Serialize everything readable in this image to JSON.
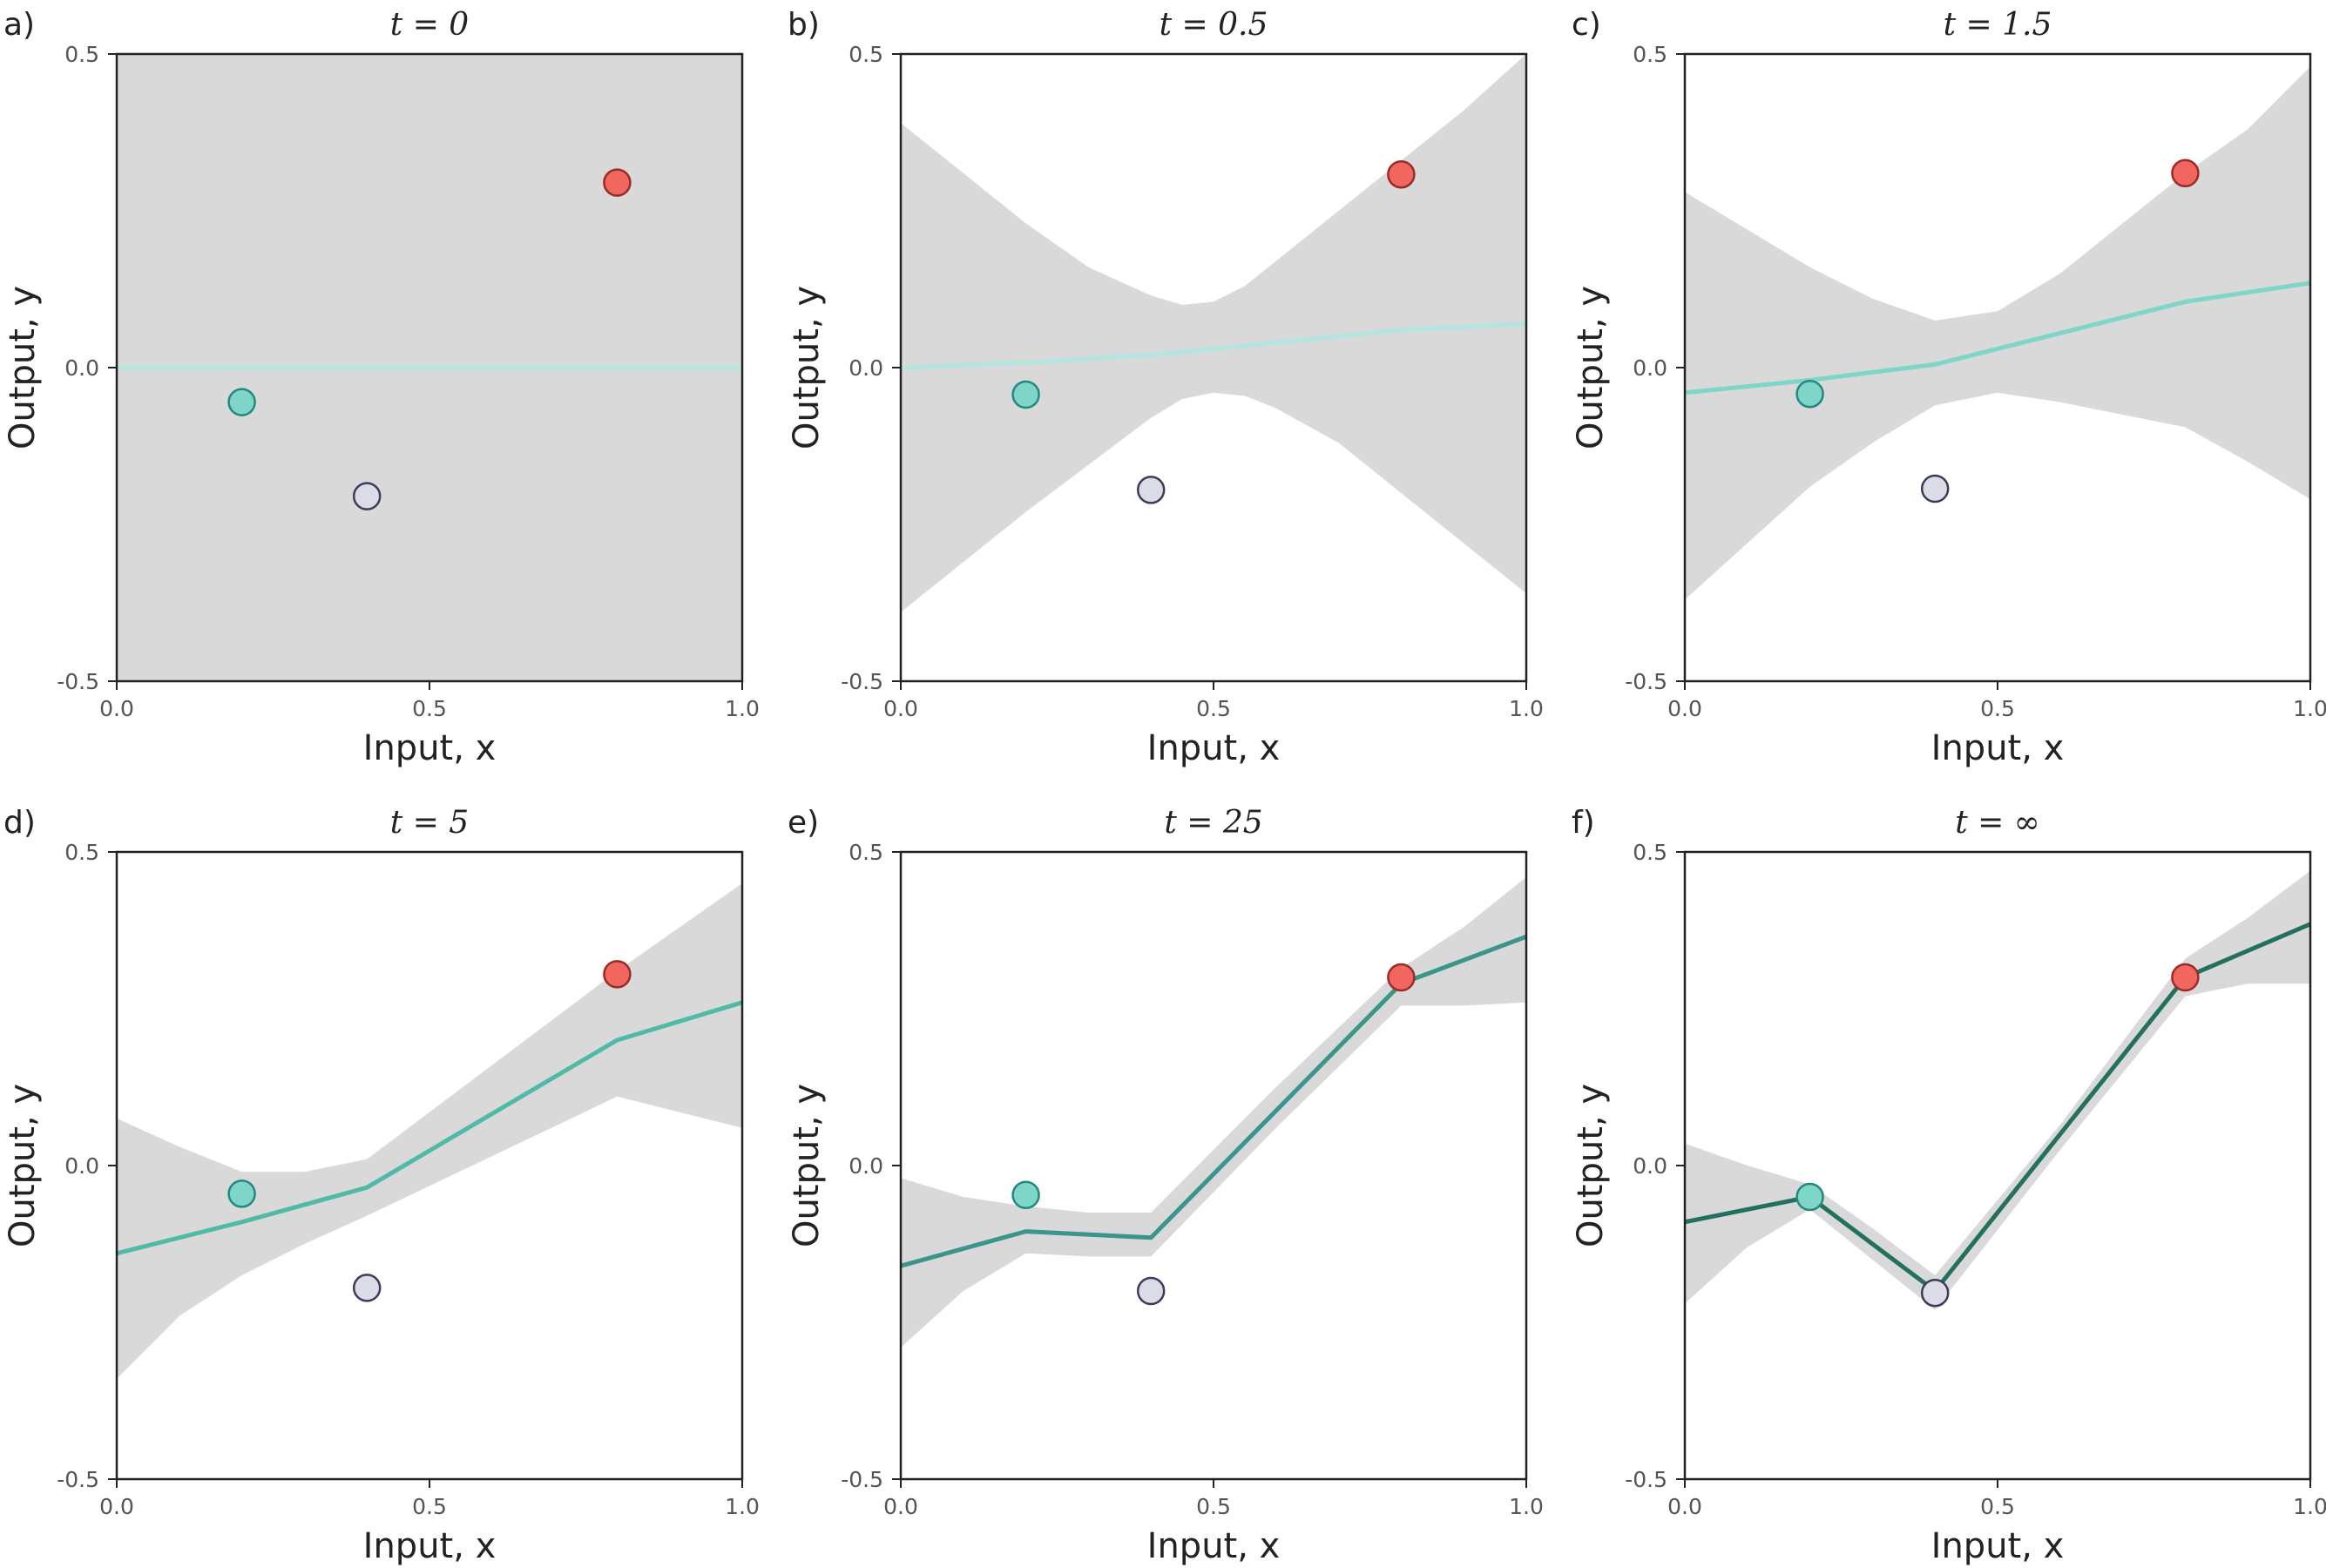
{
  "chart_data": [
    {
      "type": "line",
      "panel_label": "a)",
      "title": "t = 0",
      "xlabel": "Input, x",
      "ylabel": "Output, y",
      "xlim": [
        0.0,
        1.0
      ],
      "ylim": [
        -0.5,
        0.5
      ],
      "xticks": [
        "0.0",
        "0.5",
        "1.0"
      ],
      "yticks": [
        "-0.5",
        "0.0",
        "0.5"
      ],
      "line_color": "#b3e6df",
      "band": {
        "x": [
          0.0,
          1.0
        ],
        "lower": [
          -0.5,
          -0.5
        ],
        "upper": [
          0.5,
          0.5
        ]
      },
      "mean_line": {
        "x": [
          0.0,
          1.0
        ],
        "y": [
          0.0,
          0.0
        ]
      },
      "points": [
        {
          "x": 0.2,
          "y": -0.055,
          "color": "#7fd6c8"
        },
        {
          "x": 0.4,
          "y": -0.205,
          "color": "#dcdce6"
        },
        {
          "x": 0.8,
          "y": 0.295,
          "color": "#f26660"
        }
      ]
    },
    {
      "type": "line",
      "panel_label": "b)",
      "title": "t = 0.5",
      "xlabel": "Input, x",
      "ylabel": "Output, y",
      "xlim": [
        0.0,
        1.0
      ],
      "ylim": [
        -0.5,
        0.5
      ],
      "xticks": [
        "0.0",
        "0.5",
        "1.0"
      ],
      "yticks": [
        "-0.5",
        "0.0",
        "0.5"
      ],
      "line_color": "#b3e6df",
      "band": {
        "x": [
          0.0,
          0.1,
          0.2,
          0.3,
          0.4,
          0.45,
          0.5,
          0.55,
          0.6,
          0.7,
          0.8,
          0.9,
          1.0
        ],
        "upper": [
          0.39,
          0.31,
          0.23,
          0.16,
          0.115,
          0.1,
          0.105,
          0.13,
          0.17,
          0.25,
          0.33,
          0.41,
          0.5
        ],
        "lower": [
          -0.39,
          -0.31,
          -0.23,
          -0.155,
          -0.08,
          -0.05,
          -0.04,
          -0.045,
          -0.065,
          -0.12,
          -0.2,
          -0.28,
          -0.36
        ]
      },
      "mean_line": {
        "x": [
          0.0,
          0.2,
          0.4,
          0.6,
          0.8,
          1.0
        ],
        "y": [
          0.0,
          0.008,
          0.02,
          0.04,
          0.06,
          0.07
        ]
      },
      "points": [
        {
          "x": 0.2,
          "y": -0.043,
          "color": "#7fd6c8"
        },
        {
          "x": 0.4,
          "y": -0.195,
          "color": "#dcdce6"
        },
        {
          "x": 0.8,
          "y": 0.308,
          "color": "#f26660"
        }
      ]
    },
    {
      "type": "line",
      "panel_label": "c)",
      "title": "t = 1.5",
      "xlabel": "Input, x",
      "ylabel": "Output, y",
      "xlim": [
        0.0,
        1.0
      ],
      "ylim": [
        -0.5,
        0.5
      ],
      "xticks": [
        "0.0",
        "0.5",
        "1.0"
      ],
      "yticks": [
        "-0.5",
        "0.0",
        "0.5"
      ],
      "line_color": "#7fd6c8",
      "band": {
        "x": [
          0.0,
          0.1,
          0.2,
          0.3,
          0.4,
          0.5,
          0.6,
          0.7,
          0.8,
          0.9,
          1.0
        ],
        "upper": [
          0.28,
          0.22,
          0.16,
          0.11,
          0.075,
          0.09,
          0.15,
          0.23,
          0.31,
          0.38,
          0.48
        ],
        "lower": [
          -0.37,
          -0.28,
          -0.19,
          -0.12,
          -0.06,
          -0.04,
          -0.055,
          -0.075,
          -0.095,
          -0.15,
          -0.21
        ]
      },
      "mean_line": {
        "x": [
          0.0,
          0.2,
          0.4,
          0.6,
          0.8,
          1.0
        ],
        "y": [
          -0.04,
          -0.02,
          0.005,
          0.055,
          0.105,
          0.135
        ]
      },
      "points": [
        {
          "x": 0.2,
          "y": -0.042,
          "color": "#7fd6c8"
        },
        {
          "x": 0.4,
          "y": -0.193,
          "color": "#dcdce6"
        },
        {
          "x": 0.8,
          "y": 0.31,
          "color": "#f26660"
        }
      ]
    },
    {
      "type": "line",
      "panel_label": "d)",
      "title": "t = 5",
      "xlabel": "Input, x",
      "ylabel": "Output, y",
      "xlim": [
        0.0,
        1.0
      ],
      "ylim": [
        -0.5,
        0.5
      ],
      "xticks": [
        "0.0",
        "0.5",
        "1.0"
      ],
      "yticks": [
        "-0.5",
        "0.0",
        "0.5"
      ],
      "line_color": "#4fbaa8",
      "band": {
        "x": [
          0.0,
          0.1,
          0.2,
          0.3,
          0.4,
          0.6,
          0.8,
          1.0
        ],
        "upper": [
          0.075,
          0.03,
          -0.01,
          -0.01,
          0.01,
          0.16,
          0.31,
          0.45
        ],
        "lower": [
          -0.34,
          -0.24,
          -0.175,
          -0.125,
          -0.08,
          0.015,
          0.11,
          0.06
        ]
      },
      "mean_line": {
        "x": [
          0.0,
          0.2,
          0.4,
          0.8,
          1.0
        ],
        "y": [
          -0.14,
          -0.09,
          -0.035,
          0.2,
          0.26
        ]
      },
      "points": [
        {
          "x": 0.2,
          "y": -0.045,
          "color": "#7fd6c8"
        },
        {
          "x": 0.4,
          "y": -0.195,
          "color": "#dcdce6"
        },
        {
          "x": 0.8,
          "y": 0.305,
          "color": "#f26660"
        }
      ]
    },
    {
      "type": "line",
      "panel_label": "e)",
      "title": "t = 25",
      "xlabel": "Input, x",
      "ylabel": "Output, y",
      "xlim": [
        0.0,
        1.0
      ],
      "ylim": [
        -0.5,
        0.5
      ],
      "xticks": [
        "0.0",
        "0.5",
        "1.0"
      ],
      "yticks": [
        "-0.5",
        "0.0",
        "0.5"
      ],
      "line_color": "#3a968a",
      "band": {
        "x": [
          0.0,
          0.1,
          0.2,
          0.3,
          0.4,
          0.6,
          0.8,
          0.9,
          1.0
        ],
        "upper": [
          -0.02,
          -0.05,
          -0.065,
          -0.075,
          -0.075,
          0.125,
          0.315,
          0.38,
          0.46
        ],
        "lower": [
          -0.29,
          -0.2,
          -0.14,
          -0.145,
          -0.145,
          0.06,
          0.255,
          0.255,
          0.26
        ]
      },
      "mean_line": {
        "x": [
          0.0,
          0.2,
          0.4,
          0.8,
          1.0
        ],
        "y": [
          -0.16,
          -0.105,
          -0.115,
          0.29,
          0.365
        ]
      },
      "points": [
        {
          "x": 0.2,
          "y": -0.047,
          "color": "#7fd6c8"
        },
        {
          "x": 0.4,
          "y": -0.2,
          "color": "#dcdce6"
        },
        {
          "x": 0.8,
          "y": 0.3,
          "color": "#f26660"
        }
      ]
    },
    {
      "type": "line",
      "panel_label": "f)",
      "title": "t = ∞",
      "xlabel": "Input, x",
      "ylabel": "Output, y",
      "xlim": [
        0.0,
        1.0
      ],
      "ylim": [
        -0.5,
        0.5
      ],
      "xticks": [
        "0.0",
        "0.5",
        "1.0"
      ],
      "yticks": [
        "-0.5",
        "0.0",
        "0.5"
      ],
      "line_color": "#24705f",
      "band": {
        "x": [
          0.0,
          0.1,
          0.2,
          0.3,
          0.4,
          0.6,
          0.8,
          0.9,
          1.0
        ],
        "upper": [
          0.035,
          0.0,
          -0.03,
          -0.1,
          -0.175,
          0.065,
          0.33,
          0.395,
          0.47
        ],
        "lower": [
          -0.22,
          -0.13,
          -0.07,
          -0.15,
          -0.23,
          0.025,
          0.27,
          0.29,
          0.29
        ]
      },
      "mean_line": {
        "x": [
          0.0,
          0.2,
          0.4,
          0.8,
          1.0
        ],
        "y": [
          -0.09,
          -0.05,
          -0.2,
          0.3,
          0.385
        ]
      },
      "points": [
        {
          "x": 0.2,
          "y": -0.05,
          "color": "#7fd6c8"
        },
        {
          "x": 0.4,
          "y": -0.203,
          "color": "#dcdce6"
        },
        {
          "x": 0.8,
          "y": 0.3,
          "color": "#f26660"
        }
      ]
    }
  ],
  "style": {
    "band_color": "#d9d9d9",
    "axis_color": "#222222",
    "point_stroke_colors": [
      "#1f8a7d",
      "#3c3c5a",
      "#9a2b26"
    ]
  }
}
